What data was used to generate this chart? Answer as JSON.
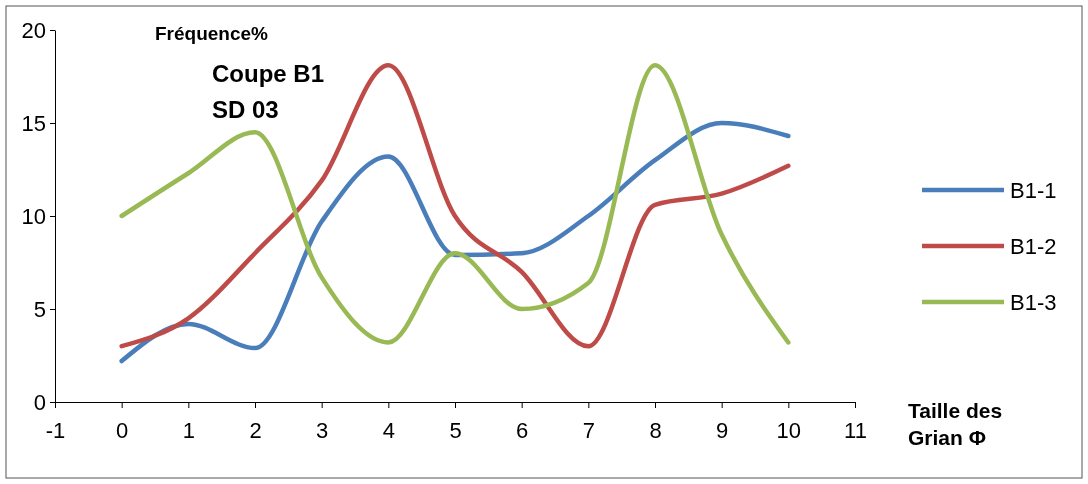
{
  "chart_data": {
    "type": "line",
    "title": "Coupe B1",
    "subtitle": "SD 03",
    "ylabel": "Fréquence%",
    "xlabel": "Taille des Grian Φ",
    "x": [
      0,
      1,
      2,
      3,
      4,
      5,
      6,
      7,
      8,
      9,
      10
    ],
    "xlim": [
      -1,
      11
    ],
    "xticks": [
      -1,
      0,
      1,
      2,
      3,
      4,
      5,
      6,
      7,
      8,
      9,
      10,
      11
    ],
    "ylim": [
      0,
      20
    ],
    "yticks": [
      0,
      5,
      10,
      15,
      20
    ],
    "grid": false,
    "legend": "right",
    "marker": "none",
    "line_style": "solid",
    "series": [
      {
        "name": "B1-1",
        "color": "#4a7ebb",
        "values": [
          2.2,
          4.2,
          2.9,
          9.7,
          13.2,
          7.9,
          8,
          10,
          13,
          15,
          14.3
        ]
      },
      {
        "name": "B1-2",
        "color": "#be4b48",
        "values": [
          3,
          4.5,
          8,
          11.9,
          18.1,
          10,
          7,
          3,
          10.6,
          11.2,
          12.7
        ]
      },
      {
        "name": "B1-3",
        "color": "#98b954",
        "values": [
          10,
          12.3,
          14.5,
          6.7,
          3.2,
          8,
          5,
          6.4,
          18.1,
          9,
          3.2
        ]
      }
    ]
  }
}
